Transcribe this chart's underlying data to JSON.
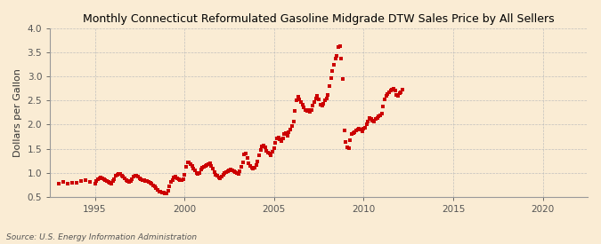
{
  "title": "Monthly Connecticut Reformulated Gasoline Midgrade DTW Sales Price by All Sellers",
  "ylabel": "Dollars per Gallon",
  "source": "Source: U.S. Energy Information Administration",
  "bg_color": "#faecd4",
  "line_color": "#cc0000",
  "xlim": [
    1992.5,
    2022.5
  ],
  "ylim": [
    0.5,
    4.0
  ],
  "yticks": [
    0.5,
    1.0,
    1.5,
    2.0,
    2.5,
    3.0,
    3.5,
    4.0
  ],
  "xticks": [
    1995,
    2000,
    2005,
    2010,
    2015,
    2020
  ],
  "dates": [
    1993.0,
    1993.25,
    1993.5,
    1993.75,
    1994.0,
    1994.25,
    1994.5,
    1994.75,
    1995.0,
    1995.08,
    1995.17,
    1995.25,
    1995.33,
    1995.42,
    1995.5,
    1995.58,
    1995.67,
    1995.75,
    1995.83,
    1995.92,
    1996.0,
    1996.08,
    1996.17,
    1996.25,
    1996.33,
    1996.42,
    1996.5,
    1996.58,
    1996.67,
    1996.75,
    1996.83,
    1996.92,
    1997.0,
    1997.08,
    1997.17,
    1997.25,
    1997.33,
    1997.42,
    1997.5,
    1997.58,
    1997.67,
    1997.75,
    1997.83,
    1997.92,
    1998.0,
    1998.08,
    1998.17,
    1998.25,
    1998.33,
    1998.42,
    1998.5,
    1998.58,
    1998.67,
    1998.75,
    1998.83,
    1998.92,
    1999.0,
    1999.08,
    1999.17,
    1999.25,
    1999.33,
    1999.42,
    1999.5,
    1999.58,
    1999.67,
    1999.75,
    1999.83,
    1999.92,
    2000.0,
    2000.08,
    2000.17,
    2000.25,
    2000.33,
    2000.42,
    2000.5,
    2000.58,
    2000.67,
    2000.75,
    2000.83,
    2000.92,
    2001.0,
    2001.08,
    2001.17,
    2001.25,
    2001.33,
    2001.42,
    2001.5,
    2001.58,
    2001.67,
    2001.75,
    2001.83,
    2001.92,
    2002.0,
    2002.08,
    2002.17,
    2002.25,
    2002.33,
    2002.42,
    2002.5,
    2002.58,
    2002.67,
    2002.75,
    2002.83,
    2002.92,
    2003.0,
    2003.08,
    2003.17,
    2003.25,
    2003.33,
    2003.42,
    2003.5,
    2003.58,
    2003.67,
    2003.75,
    2003.83,
    2003.92,
    2004.0,
    2004.08,
    2004.17,
    2004.25,
    2004.33,
    2004.42,
    2004.5,
    2004.58,
    2004.67,
    2004.75,
    2004.83,
    2004.92,
    2005.0,
    2005.08,
    2005.17,
    2005.25,
    2005.33,
    2005.42,
    2005.5,
    2005.58,
    2005.67,
    2005.75,
    2005.83,
    2005.92,
    2006.0,
    2006.08,
    2006.17,
    2006.25,
    2006.33,
    2006.42,
    2006.5,
    2006.58,
    2006.67,
    2006.75,
    2006.83,
    2006.92,
    2007.0,
    2007.08,
    2007.17,
    2007.25,
    2007.33,
    2007.42,
    2007.5,
    2007.58,
    2007.67,
    2007.75,
    2007.83,
    2007.92,
    2008.0,
    2008.08,
    2008.17,
    2008.25,
    2008.33,
    2008.42,
    2008.5,
    2008.58,
    2008.67,
    2008.75,
    2008.83,
    2008.92,
    2009.0,
    2009.08,
    2009.17,
    2009.25,
    2009.33,
    2009.42,
    2009.5,
    2009.58,
    2009.67,
    2009.75,
    2009.83,
    2009.92,
    2010.0,
    2010.08,
    2010.17,
    2010.25,
    2010.33,
    2010.42,
    2010.5,
    2010.58,
    2010.67,
    2010.75,
    2010.83,
    2010.92,
    2011.0,
    2011.08,
    2011.17,
    2011.25,
    2011.33,
    2011.42,
    2011.5,
    2011.58,
    2011.67,
    2011.75,
    2011.83,
    2011.92,
    2012.0,
    2012.08,
    2012.17
  ],
  "prices": [
    0.78,
    0.8,
    0.78,
    0.79,
    0.79,
    0.83,
    0.84,
    0.81,
    0.78,
    0.82,
    0.87,
    0.89,
    0.9,
    0.89,
    0.87,
    0.84,
    0.82,
    0.8,
    0.79,
    0.78,
    0.82,
    0.86,
    0.93,
    0.96,
    0.98,
    0.97,
    0.94,
    0.91,
    0.88,
    0.84,
    0.82,
    0.8,
    0.83,
    0.87,
    0.92,
    0.94,
    0.93,
    0.91,
    0.88,
    0.86,
    0.85,
    0.84,
    0.83,
    0.82,
    0.81,
    0.79,
    0.77,
    0.74,
    0.71,
    0.68,
    0.64,
    0.61,
    0.6,
    0.59,
    0.58,
    0.57,
    0.57,
    0.62,
    0.72,
    0.8,
    0.85,
    0.9,
    0.91,
    0.89,
    0.87,
    0.85,
    0.84,
    0.87,
    0.95,
    1.12,
    1.22,
    1.22,
    1.17,
    1.14,
    1.09,
    1.04,
    1.0,
    0.98,
    1.0,
    1.06,
    1.1,
    1.12,
    1.14,
    1.15,
    1.18,
    1.2,
    1.14,
    1.08,
    1.01,
    0.96,
    0.93,
    0.9,
    0.88,
    0.91,
    0.95,
    0.99,
    1.01,
    1.03,
    1.05,
    1.07,
    1.05,
    1.03,
    1.01,
    0.99,
    0.98,
    1.03,
    1.12,
    1.22,
    1.38,
    1.4,
    1.3,
    1.2,
    1.14,
    1.1,
    1.08,
    1.11,
    1.16,
    1.24,
    1.37,
    1.47,
    1.54,
    1.57,
    1.52,
    1.46,
    1.41,
    1.39,
    1.36,
    1.43,
    1.51,
    1.62,
    1.72,
    1.73,
    1.69,
    1.66,
    1.72,
    1.8,
    1.82,
    1.77,
    1.84,
    1.9,
    1.97,
    2.06,
    2.28,
    2.5,
    2.57,
    2.53,
    2.46,
    2.41,
    2.36,
    2.31,
    2.29,
    2.31,
    2.26,
    2.31,
    2.4,
    2.47,
    2.54,
    2.6,
    2.52,
    2.41,
    2.39,
    2.43,
    2.5,
    2.54,
    2.62,
    2.8,
    2.96,
    3.12,
    3.24,
    3.37,
    3.42,
    3.62,
    3.63,
    3.38,
    2.95,
    1.88,
    1.63,
    1.53,
    1.51,
    1.68,
    1.8,
    1.82,
    1.84,
    1.87,
    1.9,
    1.92,
    1.89,
    1.86,
    1.91,
    1.94,
    2.0,
    2.07,
    2.14,
    2.12,
    2.09,
    2.06,
    2.11,
    2.14,
    2.17,
    2.2,
    2.22,
    2.38,
    2.52,
    2.6,
    2.64,
    2.67,
    2.7,
    2.72,
    2.74,
    2.7,
    2.62,
    2.6,
    2.65,
    2.68,
    2.72
  ]
}
